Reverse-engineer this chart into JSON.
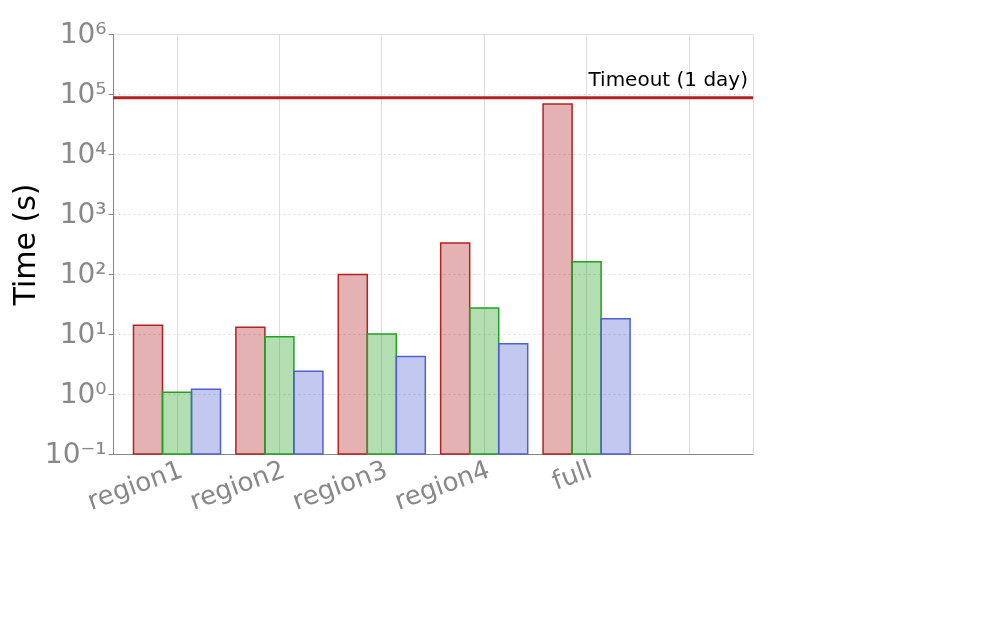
{
  "chart_data": {
    "type": "bar",
    "ylabel": "Time (s)",
    "categories": [
      "region1",
      "region2",
      "region3",
      "region4",
      "full",
      null
    ],
    "series": [
      {
        "color": "#b22222",
        "values": [
          14,
          13,
          98,
          330,
          68000,
          null
        ]
      },
      {
        "color": "#22a022",
        "values": [
          1.07,
          9,
          10,
          27,
          160,
          null
        ]
      },
      {
        "color": "#5060d0",
        "values": [
          1.2,
          2.4,
          4.2,
          6.9,
          18,
          null
        ]
      }
    ],
    "log": "y",
    "ylim": [
      0.1,
      1000000
    ],
    "yticks": [
      {
        "value": 0.1,
        "label": "10⁻¹"
      },
      {
        "value": 1,
        "label": "10⁰"
      },
      {
        "value": 10,
        "label": "10¹"
      },
      {
        "value": 100,
        "label": "10²"
      },
      {
        "value": 1000,
        "label": "10³"
      },
      {
        "value": 10000,
        "label": "10⁴"
      },
      {
        "value": 100000,
        "label": "10⁵"
      },
      {
        "value": 1000000,
        "label": "10⁶"
      }
    ],
    "ref_lines": [
      {
        "axis": "y",
        "value": 86400,
        "label": "Timeout (1 day)",
        "color": "#b22222"
      }
    ],
    "grid": true
  }
}
